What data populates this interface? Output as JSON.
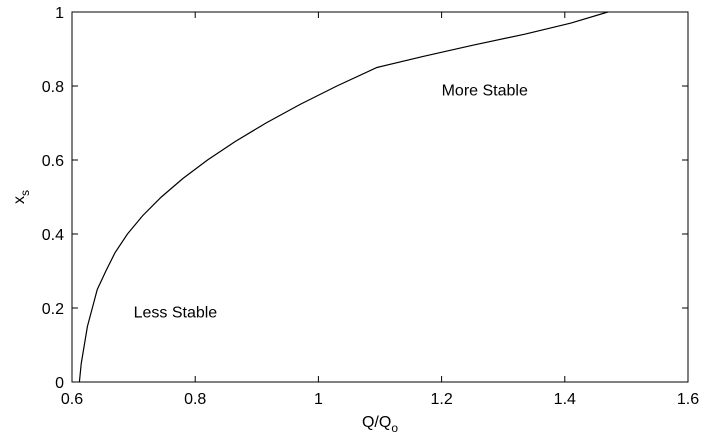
{
  "chart_data": {
    "type": "line",
    "xlabel": {
      "main": "Q/Q",
      "sub": "o"
    },
    "ylabel": {
      "main": "x",
      "sub": "s"
    },
    "xlim": [
      0.6,
      1.6
    ],
    "ylim": [
      0,
      1
    ],
    "xticks": [
      "0.6",
      "0.8",
      "1",
      "1.2",
      "1.4",
      "1.6"
    ],
    "yticks": [
      "0",
      "0.2",
      "0.4",
      "0.6",
      "0.8",
      "1"
    ],
    "grid": false,
    "series": [
      {
        "color": "#000000",
        "x": [
          0.612,
          0.615,
          0.62,
          0.625,
          0.633,
          0.641,
          0.655,
          0.67,
          0.69,
          0.715,
          0.745,
          0.78,
          0.82,
          0.865,
          0.915,
          0.97,
          1.03,
          1.095,
          1.17,
          1.25,
          1.335,
          1.41,
          1.47
        ],
        "y": [
          0.0,
          0.05,
          0.1,
          0.15,
          0.2,
          0.25,
          0.3,
          0.35,
          0.4,
          0.45,
          0.5,
          0.55,
          0.6,
          0.65,
          0.7,
          0.75,
          0.8,
          0.85,
          0.88,
          0.91,
          0.94,
          0.97,
          1.0
        ]
      }
    ],
    "annotations": [
      {
        "text": "More Stable",
        "x": 1.2,
        "y": 0.79
      },
      {
        "text": "Less Stable",
        "x": 0.7,
        "y": 0.19
      }
    ]
  }
}
